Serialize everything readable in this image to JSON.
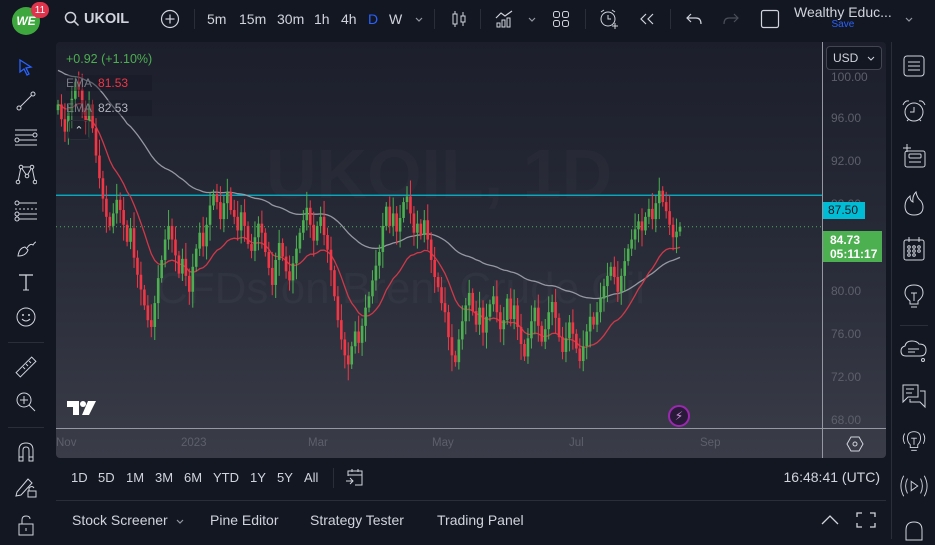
{
  "app": {
    "notification_count": "11",
    "logo_text": "WE"
  },
  "topbar": {
    "symbol": "UKOIL",
    "intervals": [
      "5m",
      "15m",
      "30m",
      "1h",
      "4h",
      "D",
      "W"
    ],
    "active_interval": "D",
    "layout_name": "Wealthy Educ...",
    "save_label": "Save"
  },
  "legend": {
    "change": "+0.92 (+1.10%)",
    "ema1_label": "EMA",
    "ema1_value": "81.53",
    "ema1_color": "#f23645",
    "ema2_label": "EMA",
    "ema2_value": "82.53",
    "ema2_color": "#b2b5be"
  },
  "watermark": {
    "symbol_line": "UKOIL, 1D",
    "desc_line": "CFDs on Brent Crude Oil"
  },
  "price_axis": {
    "currency": "USD",
    "labels": [
      "100.00",
      "96.00",
      "92.00",
      "88.00",
      "80.00",
      "76.00",
      "72.00",
      "68.00"
    ],
    "resistance_tag": "87.50",
    "last_price": "84.73",
    "countdown": "05:11:17"
  },
  "time_axis": {
    "labels": [
      "Nov",
      "2023",
      "Mar",
      "May",
      "Jul",
      "Sep"
    ]
  },
  "range_bar": {
    "ranges": [
      "1D",
      "5D",
      "1M",
      "3M",
      "6M",
      "YTD",
      "1Y",
      "5Y",
      "All"
    ],
    "clock": "16:48:41 (UTC)"
  },
  "bottom_panel": {
    "tabs": [
      "Stock Screener",
      "Pine Editor",
      "Strategy Tester",
      "Trading Panel"
    ]
  },
  "colors": {
    "up": "#4caf50",
    "down": "#f23645",
    "resistance": "#00bcd4",
    "accent": "#2962ff"
  },
  "chart_data": {
    "type": "candlestick",
    "title": "UKOIL, 1D — CFDs on Brent Crude Oil",
    "ylim": [
      67,
      101
    ],
    "resistance_level": 87.5,
    "last_price": 84.73,
    "closes": [
      95.5,
      94.2,
      93.1,
      94.8,
      96.0,
      97.5,
      96.8,
      95.2,
      94.0,
      95.5,
      93.4,
      91.0,
      89.0,
      87.2,
      85.6,
      84.8,
      85.9,
      87.1,
      86.2,
      84.9,
      83.4,
      84.6,
      82.0,
      80.5,
      79.2,
      77.8,
      76.5,
      75.9,
      78.0,
      80.2,
      81.8,
      83.6,
      84.8,
      83.6,
      82.2,
      80.6,
      81.9,
      80.4,
      79.0,
      81.2,
      82.8,
      84.2,
      83.0,
      84.9,
      86.6,
      87.6,
      86.9,
      85.4,
      86.8,
      87.8,
      86.2,
      85.6,
      84.4,
      86.0,
      84.8,
      83.2,
      82.6,
      83.8,
      85.0,
      84.2,
      82.5,
      81.1,
      79.6,
      81.8,
      83.3,
      82.1,
      80.8,
      80.0,
      81.5,
      82.8,
      84.2,
      85.3,
      86.4,
      84.9,
      83.5,
      84.8,
      85.6,
      84.0,
      82.7,
      80.9,
      78.6,
      76.5,
      74.8,
      73.4,
      72.6,
      74.2,
      75.5,
      74.5,
      76.0,
      77.6,
      78.6,
      80.0,
      81.3,
      82.5,
      84.8,
      86.5,
      84.8,
      85.9,
      84.3,
      85.5,
      86.9,
      87.4,
      85.9,
      84.2,
      85.0,
      84.0,
      85.3,
      83.6,
      81.8,
      80.3,
      79.4,
      78.0,
      77.2,
      75.0,
      73.4,
      72.8,
      74.8,
      76.4,
      77.8,
      78.9,
      77.3,
      76.1,
      77.6,
      75.4,
      76.8,
      77.9,
      78.6,
      77.2,
      75.7,
      76.5,
      78.4,
      76.6,
      77.8,
      75.9,
      74.4,
      73.3,
      74.9,
      76.4,
      77.6,
      76.0,
      74.6,
      75.7,
      77.2,
      78.1,
      76.7,
      75.0,
      73.7,
      74.9,
      76.3,
      75.3,
      74.0,
      72.9,
      74.2,
      75.5,
      76.8,
      76.1,
      77.2,
      78.4,
      79.5,
      80.4,
      81.2,
      80.3,
      79.0,
      80.4,
      81.7,
      82.8,
      83.6,
      84.5,
      85.2,
      84.4,
      85.6,
      86.3,
      85.4,
      86.8,
      87.9,
      86.9,
      86.1,
      84.9,
      83.8,
      84.3,
      84.73
    ]
  }
}
